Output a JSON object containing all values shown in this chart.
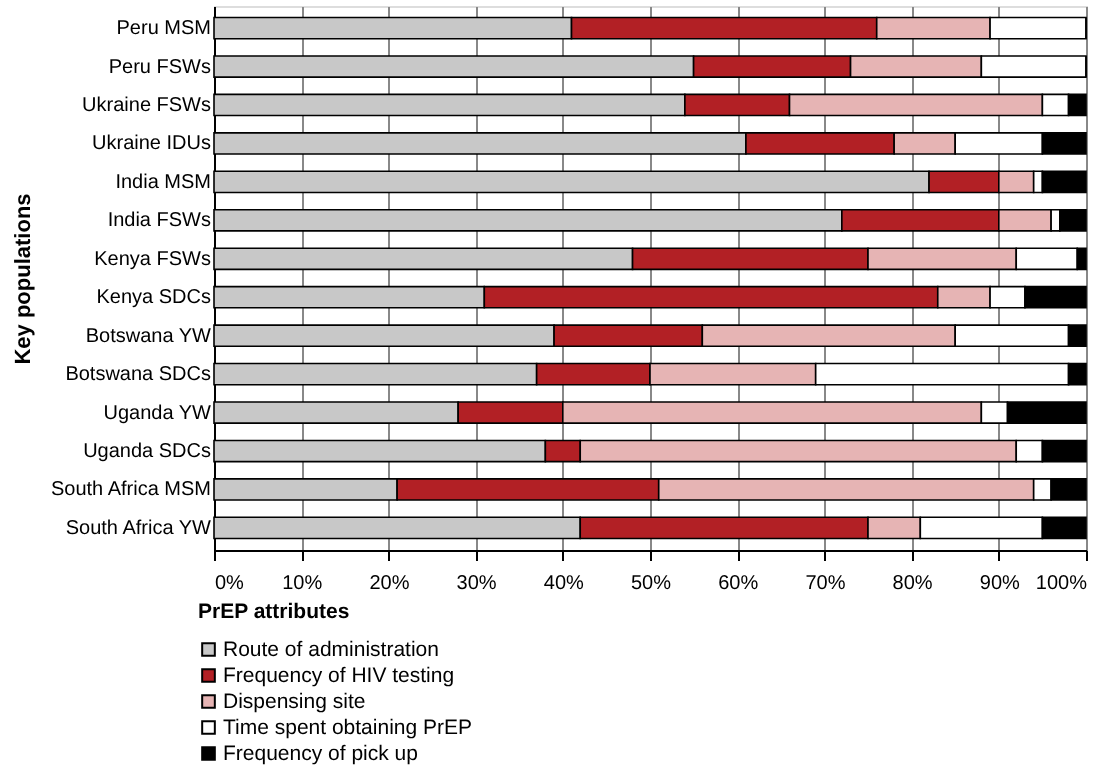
{
  "chart_data": {
    "type": "bar",
    "orientation": "horizontal",
    "stacked": true,
    "ylabel": "Key populations",
    "legend_title": "PrEP attributes",
    "legend": "bottom",
    "grid": "x",
    "categories": [
      "Peru MSM",
      "Peru FSWs",
      "Ukraine FSWs",
      "Ukraine IDUs",
      "India MSM",
      "India FSWs",
      "Kenya FSWs",
      "Kenya SDCs",
      "Botswana YW",
      "Botswana SDCs",
      "Uganda YW",
      "Uganda SDCs",
      "South Africa MSM",
      "South Africa YW"
    ],
    "xlim": [
      0,
      100
    ],
    "xticks": [
      {
        "value": 0,
        "label": "0%"
      },
      {
        "value": 10,
        "label": "10%"
      },
      {
        "value": 20,
        "label": "20%"
      },
      {
        "value": 30,
        "label": "30%"
      },
      {
        "value": 40,
        "label": "40%"
      },
      {
        "value": 50,
        "label": "50%"
      },
      {
        "value": 60,
        "label": "60%"
      },
      {
        "value": 70,
        "label": "70%"
      },
      {
        "value": 80,
        "label": "80%"
      },
      {
        "value": 90,
        "label": "90%"
      },
      {
        "value": 100,
        "label": "100%"
      }
    ],
    "series": [
      {
        "name": "Route of administration",
        "color": "#c8c8c8",
        "values": [
          41,
          55,
          54,
          61,
          82,
          72,
          48,
          31,
          39,
          37,
          28,
          38,
          21,
          42
        ]
      },
      {
        "name": "Frequency of HIV testing",
        "color": "#b22025",
        "values": [
          35,
          18,
          12,
          17,
          8,
          18,
          27,
          52,
          17,
          13,
          12,
          4,
          30,
          33
        ]
      },
      {
        "name": "Dispensing site",
        "color": "#e6b4b4",
        "values": [
          13,
          15,
          29,
          7,
          4,
          6,
          17,
          6,
          29,
          19,
          48,
          50,
          43,
          6
        ]
      },
      {
        "name": "Time spent obtaining PrEP",
        "color": "#ffffff",
        "values": [
          11,
          12,
          3,
          10,
          1,
          1,
          7,
          4,
          13,
          29,
          3,
          3,
          2,
          14
        ]
      },
      {
        "name": "Frequency of pick up",
        "color": "#000000",
        "values": [
          0,
          0,
          2,
          5,
          5,
          3,
          1,
          7,
          2,
          2,
          9,
          5,
          4,
          5
        ]
      }
    ]
  }
}
